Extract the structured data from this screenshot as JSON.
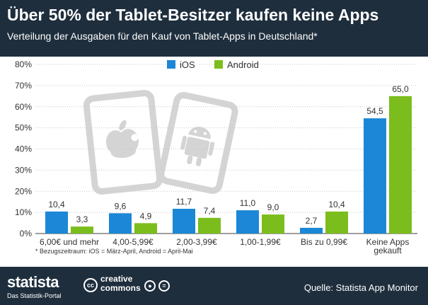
{
  "header": {
    "title": "Über 50% der Tablet-Besitzer kaufen keine Apps",
    "subtitle": "Verteilung der Ausgaben für den Kauf von Tablet-Apps in Deutschland*"
  },
  "footnote": "* Bezugszeitraum: iOS = März-April, Android = April-Mai",
  "footer": {
    "brand": "statista",
    "brand_sub": "Das Statistik-Portal",
    "cc_logo": "cc",
    "cc_line1": "creative",
    "cc_line2": "commons",
    "source": "Quelle: Statista App Monitor"
  },
  "colors": {
    "ios": "#1b87d6",
    "android": "#7bbd1c",
    "header_bg": "#1e2e3d",
    "watermark": "#d4d4d4"
  },
  "icons": {
    "watermark_left": "apple-tablet-icon",
    "watermark_right": "android-tablet-icon",
    "cc_by": "cc-by-icon",
    "cc_nd": "cc-nd-icon"
  },
  "chart_data": {
    "type": "bar",
    "categories": [
      "6,00€ und mehr",
      "4,00-5,99€",
      "2,00-3,99€",
      "1,00-1,99€",
      "Bis zu 0,99€",
      "Keine Apps gekauft"
    ],
    "series": [
      {
        "name": "iOS",
        "values": [
          10.4,
          9.6,
          11.7,
          11.0,
          2.7,
          54.5
        ],
        "labels": [
          "10,4",
          "9,6",
          "11,7",
          "11,0",
          "2,7",
          "54,5"
        ]
      },
      {
        "name": "Android",
        "values": [
          3.3,
          4.9,
          7.4,
          9.0,
          10.4,
          65.0
        ],
        "labels": [
          "3,3",
          "4,9",
          "7,4",
          "9,0",
          "10,4",
          "65,0"
        ]
      }
    ],
    "yticks": [
      "0%",
      "10%",
      "20%",
      "30%",
      "40%",
      "50%",
      "60%",
      "70%",
      "80%"
    ],
    "ylim": [
      0,
      80
    ],
    "grid": true,
    "legend_position": "top-center"
  }
}
